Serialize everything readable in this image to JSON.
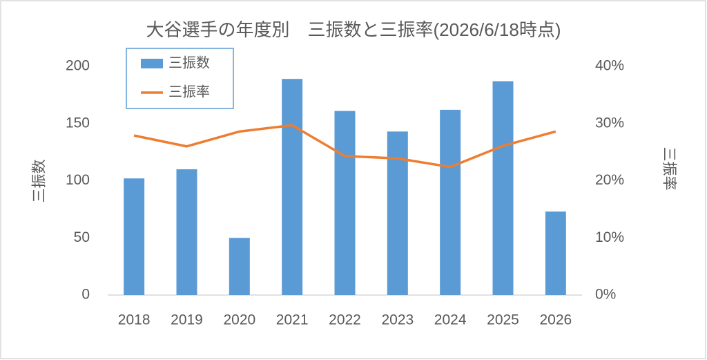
{
  "chart_data": {
    "type": "bar_line",
    "title": "大谷選手の年度別　三振数と三振率(2026/6/18時点)",
    "ylabel": "三振数",
    "y2label": "三振率",
    "categories": [
      "2018",
      "2019",
      "2020",
      "2021",
      "2022",
      "2023",
      "2024",
      "2025",
      "2026"
    ],
    "series": [
      {
        "name": "三振数",
        "type": "bar",
        "color": "#5b9bd5",
        "values": [
          102,
          110,
          50,
          189,
          161,
          143,
          162,
          187,
          73
        ]
      },
      {
        "name": "三振率",
        "type": "line",
        "axis": "y2",
        "color": "#ed7d31",
        "values": [
          27.9,
          26.0,
          28.6,
          29.7,
          24.3,
          23.9,
          22.4,
          26.1,
          28.6
        ]
      }
    ],
    "ylim": [
      0,
      200
    ],
    "yticks": [
      0,
      50,
      100,
      150,
      200
    ],
    "y2lim": [
      0,
      40
    ],
    "y2ticks": [
      {
        "value": 0,
        "label": "0%"
      },
      {
        "value": 10,
        "label": "10%"
      },
      {
        "value": 20,
        "label": "20%"
      },
      {
        "value": 30,
        "label": "30%"
      },
      {
        "value": 40,
        "label": "40%"
      }
    ]
  }
}
